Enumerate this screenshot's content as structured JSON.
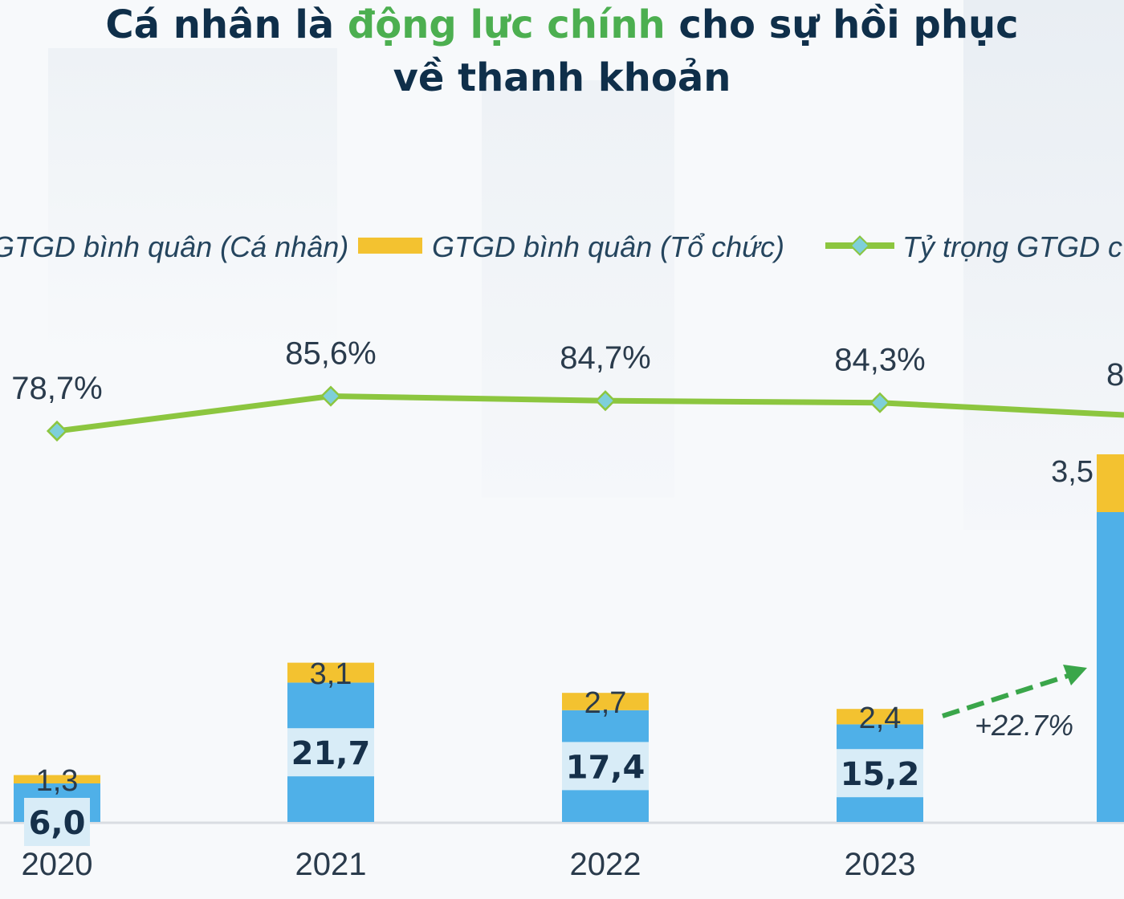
{
  "title": {
    "part1": "Cá nhân là ",
    "highlight": "động lực chính",
    "part2": " cho sự hồi phục",
    "line2": "về thanh khoản"
  },
  "legend": {
    "individual": "GTGD bình quân (Cá nhân)",
    "institution": "GTGD bình quân (Tổ chức)",
    "share": "Tỷ trọng GTGD c"
  },
  "annotation": {
    "growth": "+22.7%"
  },
  "colors": {
    "individual": "#4fb0e8",
    "institution": "#f3c230",
    "share_line": "#8cc63f",
    "share_marker": "#7ecfd9",
    "title": "#0f2f4a",
    "title_highlight": "#4caf50",
    "arrow": "#3aa64a"
  },
  "chart_data": {
    "type": "bar",
    "stacked": true,
    "categories": [
      "2020",
      "2021",
      "2022",
      "2023",
      "2"
    ],
    "series": [
      {
        "name": "GTGD bình quân (Cá nhân)",
        "values": [
          6.0,
          21.7,
          17.4,
          15.2,
          null
        ],
        "labels": [
          "6,0",
          "21,7",
          "17,4",
          "15,2",
          ""
        ]
      },
      {
        "name": "GTGD bình quân (Tổ chức)",
        "values": [
          1.3,
          3.1,
          2.7,
          2.4,
          3.5
        ],
        "labels": [
          "1,3",
          "3,1",
          "2,7",
          "2,4",
          "3,5"
        ]
      },
      {
        "name": "Tỷ trọng GTGD c",
        "type": "line",
        "values": [
          78.7,
          85.6,
          84.7,
          84.3,
          null
        ],
        "labels": [
          "78,7%",
          "85,6%",
          "84,7%",
          "84,3%",
          "8"
        ]
      }
    ],
    "annotations": [
      "+22.7%"
    ],
    "legend_position": "top",
    "grid": false
  }
}
